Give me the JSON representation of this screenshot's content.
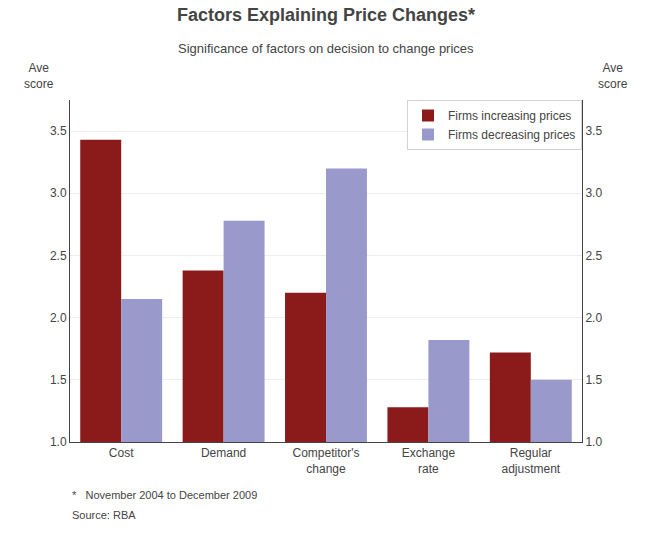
{
  "chart_data": {
    "type": "bar",
    "title": "Factors Explaining Price Changes*",
    "subtitle": "Significance of factors on decision to change prices",
    "categories": [
      "Cost",
      "Demand",
      "Competitor's\nchange",
      "Exchange\nrate",
      "Regular\nadjustment"
    ],
    "series": [
      {
        "name": "Firms increasing prices",
        "color": "#8B1A1A",
        "values": [
          3.43,
          2.38,
          2.2,
          1.28,
          1.72
        ]
      },
      {
        "name": "Firms decreasing prices",
        "color": "#9999CC",
        "values": [
          2.15,
          2.78,
          3.2,
          1.82,
          1.5
        ]
      }
    ],
    "ylabel": "Ave\nscore",
    "y2label": "Ave\nscore",
    "ylim": [
      1.0,
      3.75
    ],
    "yticks": [
      {
        "value": 1.0,
        "label": "1.0"
      },
      1.5,
      {
        "value": 2.0,
        "label": "2.0"
      },
      2.5,
      {
        "value": 3.0,
        "label": "3.0"
      },
      3.5
    ],
    "y2lim": [
      1.0,
      3.75
    ],
    "y2ticks": [
      {
        "value": 1.0,
        "label": "1.0"
      },
      1.5,
      {
        "value": 2.0,
        "label": "2.0"
      },
      2.5,
      {
        "value": 3.0,
        "label": "3.0"
      },
      3.5
    ],
    "annotations": [
      "*   November 2004 to December 2009",
      "Source: RBA"
    ],
    "grid": true,
    "legend": "upper right"
  }
}
